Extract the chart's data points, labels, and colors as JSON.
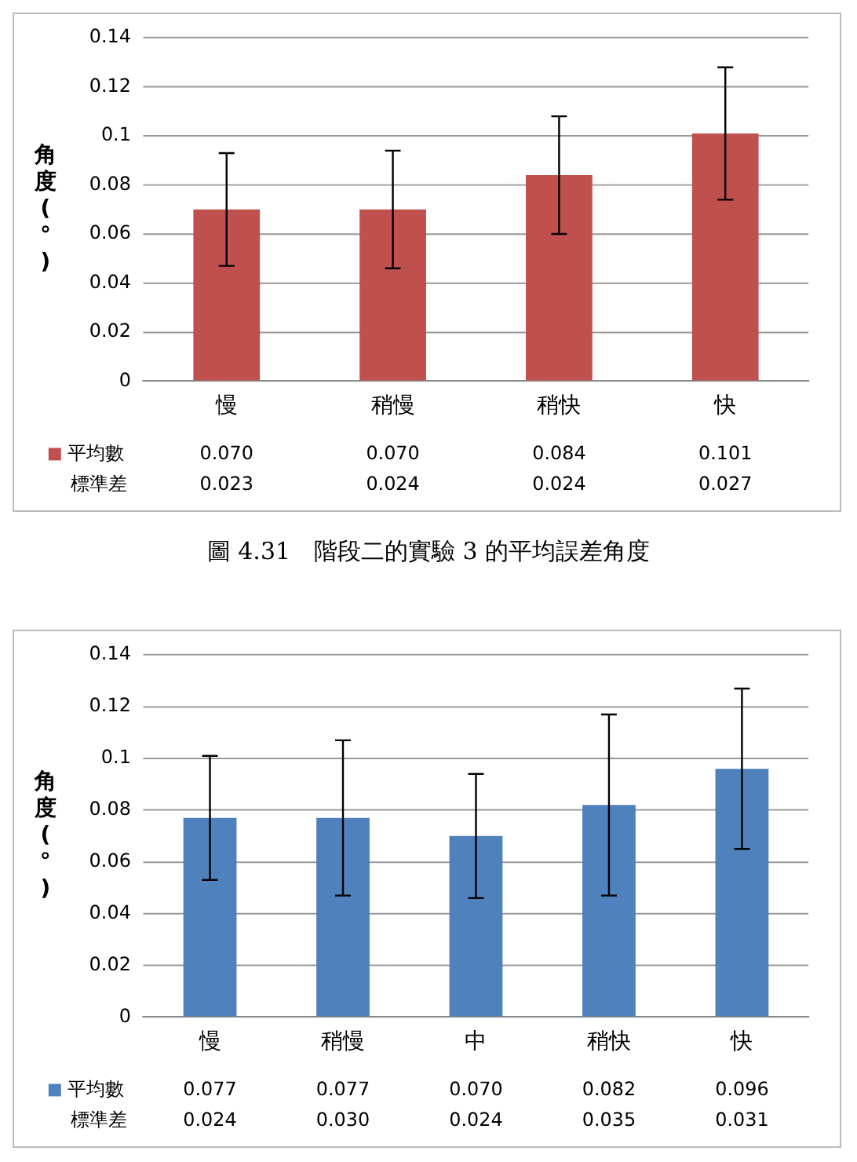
{
  "chart_data": [
    {
      "type": "bar",
      "ylabel": "角度(°)",
      "categories": [
        "慢",
        "稍慢",
        "稍快",
        "快"
      ],
      "series": [
        {
          "name": "平均數",
          "color": "#c0504d",
          "values": [
            0.07,
            0.07,
            0.084,
            0.101
          ],
          "value_labels": [
            "0.070",
            "0.070",
            "0.084",
            "0.101"
          ],
          "errors": [
            0.023,
            0.024,
            0.024,
            0.027
          ]
        }
      ],
      "ylim": [
        0,
        0.14
      ],
      "yticks": [
        0,
        0.02,
        0.04,
        0.06,
        0.08,
        0.1,
        0.12,
        0.14
      ],
      "grid": "y",
      "legend": "bottom",
      "annotations": [
        "標準差",
        "0.023",
        "0.024",
        "0.024",
        "0.027",
        "圖 4.31　階段二的實驗 3 的平均誤差角度"
      ]
    },
    {
      "type": "bar",
      "ylabel": "角度(°)",
      "categories": [
        "慢",
        "稍慢",
        "中",
        "稍快",
        "快"
      ],
      "series": [
        {
          "name": "平均數",
          "color": "#4f81bd",
          "values": [
            0.077,
            0.077,
            0.07,
            0.082,
            0.096
          ],
          "value_labels": [
            "0.077",
            "0.077",
            "0.070",
            "0.082",
            "0.096"
          ],
          "errors": [
            0.024,
            0.03,
            0.024,
            0.035,
            0.031
          ]
        }
      ],
      "ylim": [
        0,
        0.14
      ],
      "yticks": [
        0,
        0.02,
        0.04,
        0.06,
        0.08,
        0.1,
        0.12,
        0.14
      ],
      "grid": "y",
      "legend": "bottom",
      "annotations": [
        "標準差",
        "0.024",
        "0.030",
        "0.024",
        "0.035",
        "0.031"
      ]
    }
  ]
}
